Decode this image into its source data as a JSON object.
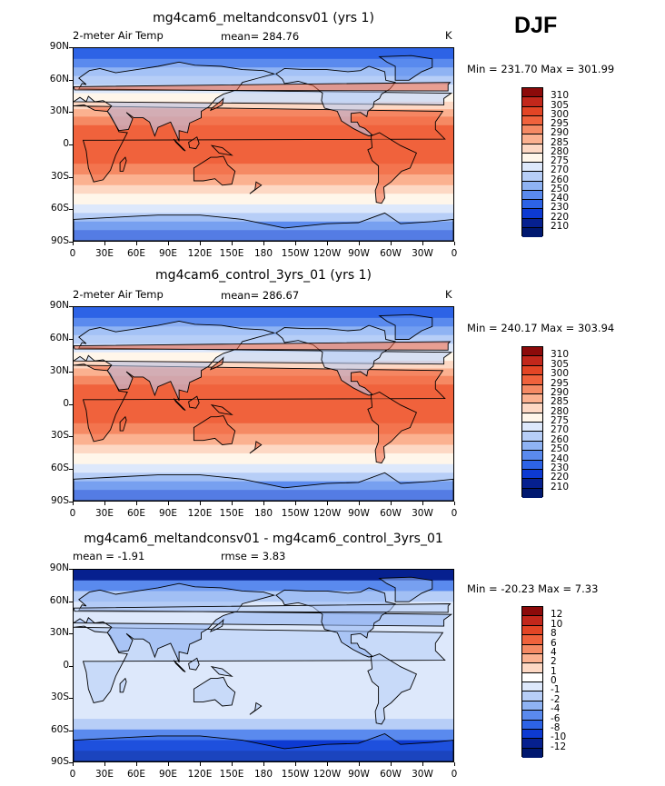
{
  "season": "DJF",
  "panels": [
    {
      "title": "mg4cam6_meltandconsv01 (yrs 1)",
      "left_label": "2-meter Air Temp",
      "stat": "mean= 284.76",
      "units": "K",
      "minmax": "Min = 231.70 Max = 301.99",
      "colorbar": [
        "310",
        "305",
        "300",
        "295",
        "290",
        "285",
        "280",
        "275",
        "270",
        "260",
        "250",
        "240",
        "230",
        "220",
        "210"
      ]
    },
    {
      "title": "mg4cam6_control_3yrs_01 (yrs 1)",
      "left_label": "2-meter Air Temp",
      "stat": "mean= 286.67",
      "units": "K",
      "minmax": "Min = 240.17 Max = 303.94",
      "colorbar": [
        "310",
        "305",
        "300",
        "295",
        "290",
        "285",
        "280",
        "275",
        "270",
        "260",
        "250",
        "240",
        "230",
        "220",
        "210"
      ]
    },
    {
      "title": "mg4cam6_meltandconsv01 - mg4cam6_control_3yrs_01",
      "left_label": "mean =  -1.91",
      "stat": "rmse =   3.83",
      "units": "",
      "minmax": "Min = -20.23 Max =   7.33",
      "colorbar": [
        "12",
        "10",
        "8",
        "6",
        "4",
        "2",
        "1",
        "0",
        "-1",
        "-2",
        "-4",
        "-6",
        "-8",
        "-10",
        "-12"
      ]
    }
  ],
  "lat_labels": [
    "90N",
    "60N",
    "30N",
    "0",
    "30S",
    "60S",
    "90S"
  ],
  "lon_labels": [
    "0",
    "30E",
    "60E",
    "90E",
    "120E",
    "150E",
    "180",
    "150W",
    "120W",
    "90W",
    "60W",
    "30W",
    "0"
  ],
  "colors": {
    "abs_scale": [
      "#8c0a0a",
      "#c2271b",
      "#e34525",
      "#f0623c",
      "#f58a64",
      "#fbb190",
      "#fdd8c4",
      "#fff6ea",
      "#dde8fb",
      "#b7cef7",
      "#8fb3f3",
      "#5a8aee",
      "#2d63e6",
      "#0d3ad2",
      "#06208f",
      "#001870"
    ],
    "diff_scale": [
      "#8c0a0a",
      "#c2271b",
      "#e34525",
      "#f0623c",
      "#f58a64",
      "#fbb190",
      "#fdd8c4",
      "#ffffff",
      "#dde8fb",
      "#b7cef7",
      "#8fb3f3",
      "#5a8aee",
      "#2d63e6",
      "#0d3ad2",
      "#06208f",
      "#001870"
    ]
  }
}
